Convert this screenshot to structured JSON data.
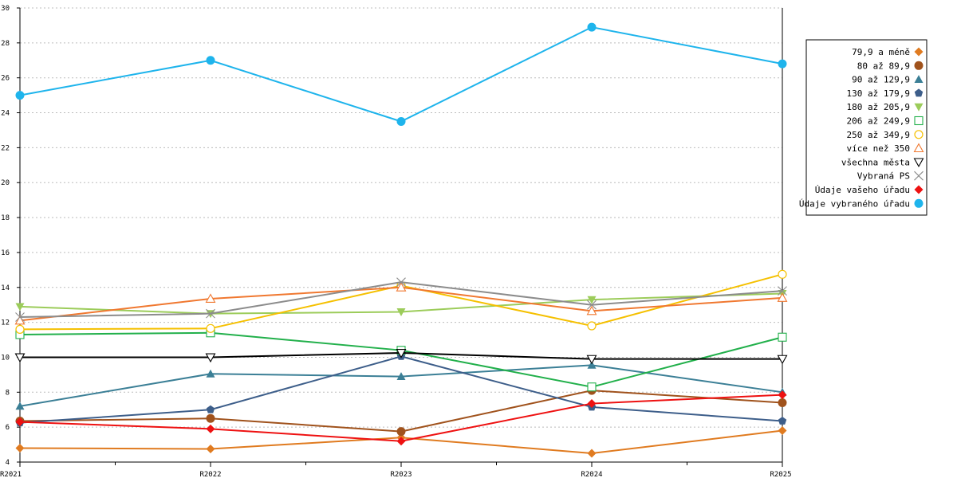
{
  "chart_data": {
    "type": "line",
    "title": "",
    "xlabel": "",
    "ylabel": "",
    "categories": [
      "R2021",
      "R2022",
      "R2023",
      "R2024",
      "R2025"
    ],
    "ylim": [
      4,
      30
    ],
    "yticks": [
      4,
      6,
      8,
      10,
      12,
      14,
      16,
      18,
      20,
      22,
      24,
      26,
      28,
      30
    ],
    "grid": "horizontal dashed",
    "legend_position": "right",
    "series": [
      {
        "name": "79,9 a méně",
        "color": "#e07b20",
        "marker": "diamond-filled",
        "values": [
          4.8,
          4.75,
          5.4,
          4.5,
          5.8
        ]
      },
      {
        "name": "80 až 89,9",
        "color": "#a0521c",
        "marker": "circle-filled",
        "values": [
          6.35,
          6.5,
          5.75,
          8.1,
          7.4
        ]
      },
      {
        "name": "90 až 129,9",
        "color": "#3b7f96",
        "marker": "triangle-up-filled",
        "values": [
          7.2,
          9.05,
          8.9,
          9.55,
          8.0
        ]
      },
      {
        "name": "130 až 179,9",
        "color": "#3d5e8a",
        "marker": "pentagon-filled",
        "values": [
          6.25,
          7.0,
          10.05,
          7.15,
          6.35
        ]
      },
      {
        "name": "180 až 205,9",
        "color": "#9ccc5a",
        "marker": "triangle-down-filled",
        "values": [
          12.9,
          12.5,
          12.6,
          13.3,
          13.65
        ]
      },
      {
        "name": "206 až 249,9",
        "color": "#22b04b",
        "marker": "square-open",
        "values": [
          11.3,
          11.4,
          10.4,
          8.3,
          11.15
        ]
      },
      {
        "name": "250 až 349,9",
        "color": "#f5c000",
        "marker": "circle-open",
        "values": [
          11.6,
          11.65,
          14.1,
          11.8,
          14.75
        ]
      },
      {
        "name": "více než 350",
        "color": "#f07830",
        "marker": "triangle-up-open",
        "values": [
          12.1,
          13.35,
          14.0,
          12.65,
          13.4
        ]
      },
      {
        "name": "všechna města",
        "color": "#000000",
        "marker": "triangle-down-open",
        "values": [
          10.0,
          10.0,
          10.25,
          9.9,
          9.9
        ]
      },
      {
        "name": "Vybraná PS",
        "color": "#8c8c8c",
        "marker": "cross",
        "values": [
          12.3,
          12.5,
          14.3,
          13.0,
          13.8
        ]
      },
      {
        "name": "Údaje vašeho úřadu",
        "color": "#ee1111",
        "marker": "diamond-filled",
        "values": [
          6.3,
          5.9,
          5.2,
          7.35,
          7.85
        ]
      },
      {
        "name": "Údaje vybraného úřadu",
        "color": "#1eb4ec",
        "marker": "circle-filled",
        "values": [
          25.0,
          27.0,
          23.5,
          28.9,
          26.8
        ]
      }
    ]
  }
}
